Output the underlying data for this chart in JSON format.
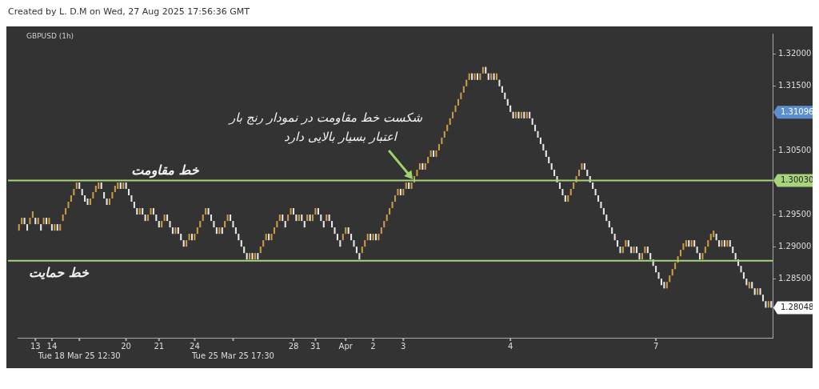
{
  "chart_data": {
    "type": "candlestick",
    "title": "Created by L. D.M on Wed, 27 Aug 2025 17:56:36 GMT",
    "subtitle": "GBPUSD (1h)",
    "categories": [
      null,
      null,
      null,
      null,
      null,
      null,
      "13",
      null,
      null,
      null,
      null,
      null,
      "14",
      null,
      null,
      null,
      null,
      null,
      null,
      null,
      null,
      null,
      "Tue 18 Mar 25 12:30",
      null,
      null,
      null,
      null,
      null,
      null,
      null,
      null,
      null,
      null,
      null,
      null,
      null,
      null,
      null,
      null,
      "20",
      null,
      null,
      null,
      null,
      null,
      null,
      null,
      null,
      null,
      null,
      null,
      "21",
      null,
      null,
      null,
      null,
      null,
      null,
      null,
      null,
      null,
      null,
      null,
      null,
      "24",
      null,
      null,
      null,
      null,
      null,
      null,
      null,
      null,
      null,
      null,
      null,
      null,
      null,
      "Tue 25 Mar 25 17:30",
      null,
      null,
      null,
      null,
      null,
      null,
      null,
      null,
      null,
      null,
      null,
      null,
      null,
      null,
      null,
      null,
      null,
      null,
      null,
      null,
      null,
      "28",
      null,
      null,
      null,
      null,
      null,
      null,
      null,
      "31",
      null,
      null,
      null,
      null,
      null,
      null,
      null,
      null,
      null,
      null,
      "Apr",
      null,
      null,
      null,
      null,
      null,
      null,
      null,
      null,
      null,
      "2",
      null,
      null,
      null,
      null,
      null,
      null,
      null,
      null,
      null,
      null,
      "3",
      null,
      null,
      null,
      null,
      null,
      null,
      null,
      null,
      null,
      null,
      null,
      null,
      null,
      null,
      null,
      null,
      null,
      null,
      null,
      null,
      null,
      null,
      null,
      null,
      null,
      null,
      null,
      null,
      null,
      null,
      null,
      null,
      null,
      null,
      null,
      null,
      null,
      null,
      "4",
      null,
      null,
      null,
      null,
      null,
      null,
      null,
      null,
      null,
      null,
      null,
      null,
      null,
      null,
      null,
      null,
      null,
      null,
      null,
      null,
      null,
      null,
      null,
      null,
      null,
      null,
      null,
      null,
      null,
      null,
      null,
      null,
      null,
      null,
      null,
      null,
      null,
      null,
      null,
      null,
      null,
      null,
      null,
      null,
      null,
      null,
      null,
      null,
      null,
      null,
      null,
      null,
      "7",
      null,
      null,
      null,
      null,
      null,
      null,
      null,
      null,
      null,
      null,
      null,
      null,
      null,
      null,
      null,
      null,
      null,
      null,
      null,
      null,
      null,
      null,
      null,
      null,
      null,
      null,
      null,
      null,
      null,
      null,
      null,
      null,
      null,
      null,
      null,
      null,
      null,
      null,
      null,
      null,
      null,
      null
    ],
    "ohlc": [
      [
        1.2925,
        1.2935,
        1.2925,
        1.2935
      ],
      [
        1.2935,
        1.2945,
        1.2935,
        1.2945
      ],
      [
        1.2945,
        1.2945,
        1.2935,
        1.2935
      ],
      [
        1.2935,
        1.2935,
        1.2925,
        1.2925
      ],
      [
        1.2935,
        1.2945,
        1.2935,
        1.2945
      ],
      [
        1.2945,
        1.2955,
        1.2945,
        1.2955
      ],
      [
        1.2945,
        1.2945,
        1.2935,
        1.2935
      ],
      [
        1.2935,
        1.2945,
        1.2935,
        1.2945
      ],
      [
        1.2935,
        1.2935,
        1.2925,
        1.2925
      ],
      [
        1.2935,
        1.2945,
        1.2935,
        1.2945
      ],
      [
        1.2945,
        1.2945,
        1.2935,
        1.2935
      ],
      [
        1.2935,
        1.2945,
        1.2935,
        1.2945
      ],
      [
        1.2935,
        1.2935,
        1.2925,
        1.2925
      ],
      [
        1.2925,
        1.2935,
        1.2925,
        1.2935
      ],
      [
        1.2935,
        1.2935,
        1.2925,
        1.2925
      ],
      [
        1.2925,
        1.2935,
        1.2925,
        1.2935
      ],
      [
        1.294,
        1.295,
        1.294,
        1.295
      ],
      [
        1.295,
        1.296,
        1.295,
        1.296
      ],
      [
        1.296,
        1.297,
        1.296,
        1.297
      ],
      [
        1.297,
        1.298,
        1.297,
        1.298
      ],
      [
        1.298,
        1.299,
        1.298,
        1.299
      ],
      [
        1.299,
        1.3,
        1.299,
        1.3
      ],
      [
        1.3,
        1.3,
        1.299,
        1.299
      ],
      [
        1.299,
        1.299,
        1.298,
        1.298
      ],
      [
        1.298,
        1.298,
        1.297,
        1.297
      ],
      [
        1.2975,
        1.2975,
        1.2965,
        1.2965
      ],
      [
        1.2965,
        1.2975,
        1.2965,
        1.2975
      ],
      [
        1.2975,
        1.2985,
        1.2975,
        1.2985
      ],
      [
        1.2985,
        1.2995,
        1.2985,
        1.2995
      ],
      [
        1.299,
        1.3,
        1.299,
        1.3
      ],
      [
        1.3,
        1.3,
        1.299,
        1.299
      ],
      [
        1.2985,
        1.2985,
        1.2975,
        1.2975
      ],
      [
        1.2975,
        1.2975,
        1.2965,
        1.2965
      ],
      [
        1.2965,
        1.2975,
        1.2965,
        1.2975
      ],
      [
        1.2975,
        1.2985,
        1.2975,
        1.2985
      ],
      [
        1.2985,
        1.2995,
        1.2985,
        1.2995
      ],
      [
        1.299,
        1.3,
        1.299,
        1.3
      ],
      [
        1.3,
        1.3,
        1.299,
        1.299
      ],
      [
        1.299,
        1.3,
        1.299,
        1.3
      ],
      [
        1.3,
        1.3,
        1.299,
        1.299
      ],
      [
        1.299,
        1.299,
        1.298,
        1.298
      ],
      [
        1.298,
        1.298,
        1.297,
        1.297
      ],
      [
        1.297,
        1.297,
        1.296,
        1.296
      ],
      [
        1.296,
        1.296,
        1.295,
        1.295
      ],
      [
        1.295,
        1.296,
        1.295,
        1.296
      ],
      [
        1.296,
        1.296,
        1.295,
        1.295
      ],
      [
        1.295,
        1.295,
        1.294,
        1.294
      ],
      [
        1.294,
        1.295,
        1.294,
        1.295
      ],
      [
        1.295,
        1.296,
        1.295,
        1.296
      ],
      [
        1.296,
        1.296,
        1.295,
        1.295
      ],
      [
        1.295,
        1.295,
        1.294,
        1.294
      ],
      [
        1.294,
        1.294,
        1.293,
        1.293
      ],
      [
        1.293,
        1.294,
        1.293,
        1.294
      ],
      [
        1.294,
        1.295,
        1.294,
        1.295
      ],
      [
        1.295,
        1.295,
        1.294,
        1.294
      ],
      [
        1.294,
        1.294,
        1.293,
        1.293
      ],
      [
        1.293,
        1.293,
        1.292,
        1.292
      ],
      [
        1.292,
        1.293,
        1.292,
        1.293
      ],
      [
        1.293,
        1.293,
        1.292,
        1.292
      ],
      [
        1.292,
        1.292,
        1.291,
        1.291
      ],
      [
        1.291,
        1.291,
        1.29,
        1.29
      ],
      [
        1.29,
        1.291,
        1.29,
        1.291
      ],
      [
        1.291,
        1.292,
        1.291,
        1.292
      ],
      [
        1.292,
        1.292,
        1.291,
        1.291
      ],
      [
        1.291,
        1.292,
        1.291,
        1.292
      ],
      [
        1.292,
        1.293,
        1.292,
        1.293
      ],
      [
        1.293,
        1.294,
        1.293,
        1.294
      ],
      [
        1.294,
        1.295,
        1.294,
        1.295
      ],
      [
        1.295,
        1.296,
        1.295,
        1.296
      ],
      [
        1.296,
        1.296,
        1.295,
        1.295
      ],
      [
        1.295,
        1.295,
        1.294,
        1.294
      ],
      [
        1.294,
        1.294,
        1.293,
        1.293
      ],
      [
        1.293,
        1.293,
        1.292,
        1.292
      ],
      [
        1.292,
        1.293,
        1.292,
        1.293
      ],
      [
        1.293,
        1.293,
        1.292,
        1.292
      ],
      [
        1.293,
        1.294,
        1.293,
        1.294
      ],
      [
        1.294,
        1.295,
        1.294,
        1.295
      ],
      [
        1.295,
        1.295,
        1.294,
        1.294
      ],
      [
        1.294,
        1.294,
        1.293,
        1.293
      ],
      [
        1.293,
        1.293,
        1.292,
        1.292
      ],
      [
        1.292,
        1.292,
        1.291,
        1.291
      ],
      [
        1.291,
        1.291,
        1.29,
        1.29
      ],
      [
        1.29,
        1.29,
        1.289,
        1.289
      ],
      [
        1.289,
        1.289,
        1.288,
        1.288
      ],
      [
        1.288,
        1.289,
        1.288,
        1.289
      ],
      [
        1.289,
        1.289,
        1.288,
        1.288
      ],
      [
        1.288,
        1.289,
        1.288,
        1.289
      ],
      [
        1.289,
        1.289,
        1.288,
        1.288
      ],
      [
        1.289,
        1.29,
        1.289,
        1.29
      ],
      [
        1.29,
        1.291,
        1.29,
        1.291
      ],
      [
        1.291,
        1.292,
        1.291,
        1.292
      ],
      [
        1.292,
        1.292,
        1.291,
        1.291
      ],
      [
        1.291,
        1.292,
        1.291,
        1.292
      ],
      [
        1.292,
        1.293,
        1.292,
        1.293
      ],
      [
        1.293,
        1.294,
        1.293,
        1.294
      ],
      [
        1.294,
        1.295,
        1.294,
        1.295
      ],
      [
        1.295,
        1.295,
        1.294,
        1.294
      ],
      [
        1.294,
        1.294,
        1.293,
        1.293
      ],
      [
        1.294,
        1.295,
        1.294,
        1.295
      ],
      [
        1.295,
        1.296,
        1.295,
        1.296
      ],
      [
        1.296,
        1.296,
        1.295,
        1.295
      ],
      [
        1.295,
        1.295,
        1.294,
        1.294
      ],
      [
        1.294,
        1.295,
        1.294,
        1.295
      ],
      [
        1.295,
        1.295,
        1.294,
        1.294
      ],
      [
        1.294,
        1.294,
        1.293,
        1.293
      ],
      [
        1.294,
        1.295,
        1.294,
        1.295
      ],
      [
        1.295,
        1.295,
        1.294,
        1.294
      ],
      [
        1.294,
        1.295,
        1.294,
        1.295
      ],
      [
        1.295,
        1.296,
        1.295,
        1.296
      ],
      [
        1.296,
        1.296,
        1.295,
        1.295
      ],
      [
        1.295,
        1.295,
        1.294,
        1.294
      ],
      [
        1.294,
        1.294,
        1.293,
        1.293
      ],
      [
        1.294,
        1.295,
        1.294,
        1.295
      ],
      [
        1.295,
        1.295,
        1.294,
        1.294
      ],
      [
        1.294,
        1.294,
        1.293,
        1.293
      ],
      [
        1.293,
        1.293,
        1.292,
        1.292
      ],
      [
        1.292,
        1.292,
        1.291,
        1.291
      ],
      [
        1.291,
        1.291,
        1.29,
        1.29
      ],
      [
        1.291,
        1.292,
        1.291,
        1.292
      ],
      [
        1.292,
        1.293,
        1.292,
        1.293
      ],
      [
        1.293,
        1.293,
        1.292,
        1.292
      ],
      [
        1.292,
        1.292,
        1.291,
        1.291
      ],
      [
        1.291,
        1.291,
        1.29,
        1.29
      ],
      [
        1.29,
        1.29,
        1.289,
        1.289
      ],
      [
        1.289,
        1.289,
        1.288,
        1.288
      ],
      [
        1.289,
        1.29,
        1.289,
        1.29
      ],
      [
        1.29,
        1.291,
        1.29,
        1.291
      ],
      [
        1.291,
        1.292,
        1.291,
        1.292
      ],
      [
        1.292,
        1.292,
        1.291,
        1.291
      ],
      [
        1.291,
        1.292,
        1.291,
        1.292
      ],
      [
        1.292,
        1.292,
        1.291,
        1.291
      ],
      [
        1.291,
        1.292,
        1.291,
        1.292
      ],
      [
        1.292,
        1.293,
        1.292,
        1.293
      ],
      [
        1.293,
        1.294,
        1.293,
        1.294
      ],
      [
        1.294,
        1.295,
        1.294,
        1.295
      ],
      [
        1.295,
        1.296,
        1.295,
        1.296
      ],
      [
        1.296,
        1.297,
        1.296,
        1.297
      ],
      [
        1.297,
        1.298,
        1.297,
        1.298
      ],
      [
        1.298,
        1.299,
        1.298,
        1.299
      ],
      [
        1.299,
        1.299,
        1.298,
        1.298
      ],
      [
        1.298,
        1.299,
        1.298,
        1.299
      ],
      [
        1.299,
        1.3,
        1.299,
        1.3
      ],
      [
        1.3,
        1.3,
        1.299,
        1.299
      ],
      [
        1.299,
        1.3,
        1.299,
        1.3
      ],
      [
        1.3,
        1.301,
        1.3,
        1.301
      ],
      [
        1.301,
        1.302,
        1.301,
        1.302
      ],
      [
        1.302,
        1.303,
        1.302,
        1.303
      ],
      [
        1.303,
        1.303,
        1.302,
        1.302
      ],
      [
        1.302,
        1.303,
        1.302,
        1.303
      ],
      [
        1.303,
        1.304,
        1.303,
        1.304
      ],
      [
        1.304,
        1.305,
        1.304,
        1.305
      ],
      [
        1.305,
        1.305,
        1.304,
        1.304
      ],
      [
        1.304,
        1.305,
        1.304,
        1.305
      ],
      [
        1.305,
        1.306,
        1.305,
        1.306
      ],
      [
        1.306,
        1.307,
        1.306,
        1.307
      ],
      [
        1.307,
        1.308,
        1.307,
        1.308
      ],
      [
        1.308,
        1.309,
        1.308,
        1.309
      ],
      [
        1.309,
        1.31,
        1.309,
        1.31
      ],
      [
        1.31,
        1.311,
        1.31,
        1.311
      ],
      [
        1.311,
        1.312,
        1.311,
        1.312
      ],
      [
        1.312,
        1.313,
        1.312,
        1.313
      ],
      [
        1.313,
        1.314,
        1.313,
        1.314
      ],
      [
        1.314,
        1.315,
        1.314,
        1.315
      ],
      [
        1.315,
        1.316,
        1.315,
        1.316
      ],
      [
        1.316,
        1.317,
        1.316,
        1.317
      ],
      [
        1.317,
        1.317,
        1.316,
        1.316
      ],
      [
        1.316,
        1.317,
        1.316,
        1.317
      ],
      [
        1.317,
        1.317,
        1.316,
        1.316
      ],
      [
        1.316,
        1.317,
        1.316,
        1.317
      ],
      [
        1.317,
        1.318,
        1.317,
        1.318
      ],
      [
        1.318,
        1.318,
        1.317,
        1.317
      ],
      [
        1.317,
        1.317,
        1.316,
        1.316
      ],
      [
        1.316,
        1.317,
        1.316,
        1.317
      ],
      [
        1.317,
        1.317,
        1.316,
        1.316
      ],
      [
        1.316,
        1.317,
        1.316,
        1.317
      ],
      [
        1.316,
        1.316,
        1.315,
        1.315
      ],
      [
        1.315,
        1.315,
        1.314,
        1.314
      ],
      [
        1.314,
        1.314,
        1.313,
        1.313
      ],
      [
        1.313,
        1.313,
        1.312,
        1.312
      ],
      [
        1.312,
        1.312,
        1.311,
        1.311
      ],
      [
        1.311,
        1.311,
        1.31,
        1.31
      ],
      [
        1.31,
        1.311,
        1.31,
        1.311
      ],
      [
        1.311,
        1.311,
        1.31,
        1.31
      ],
      [
        1.31,
        1.311,
        1.31,
        1.311
      ],
      [
        1.311,
        1.311,
        1.31,
        1.31
      ],
      [
        1.31,
        1.311,
        1.31,
        1.311
      ],
      [
        1.311,
        1.311,
        1.31,
        1.31
      ],
      [
        1.31,
        1.31,
        1.309,
        1.309
      ],
      [
        1.309,
        1.309,
        1.308,
        1.308
      ],
      [
        1.308,
        1.308,
        1.307,
        1.307
      ],
      [
        1.307,
        1.307,
        1.306,
        1.306
      ],
      [
        1.306,
        1.306,
        1.305,
        1.305
      ],
      [
        1.305,
        1.305,
        1.304,
        1.304
      ],
      [
        1.304,
        1.304,
        1.303,
        1.303
      ],
      [
        1.303,
        1.303,
        1.302,
        1.302
      ],
      [
        1.302,
        1.302,
        1.301,
        1.301
      ],
      [
        1.301,
        1.301,
        1.3,
        1.3
      ],
      [
        1.3,
        1.3,
        1.299,
        1.299
      ],
      [
        1.299,
        1.299,
        1.298,
        1.298
      ],
      [
        1.298,
        1.298,
        1.297,
        1.297
      ],
      [
        1.297,
        1.298,
        1.297,
        1.298
      ],
      [
        1.298,
        1.299,
        1.298,
        1.299
      ],
      [
        1.299,
        1.3,
        1.299,
        1.3
      ],
      [
        1.3,
        1.301,
        1.3,
        1.301
      ],
      [
        1.301,
        1.302,
        1.301,
        1.302
      ],
      [
        1.302,
        1.303,
        1.302,
        1.303
      ],
      [
        1.303,
        1.303,
        1.302,
        1.302
      ],
      [
        1.302,
        1.302,
        1.301,
        1.301
      ],
      [
        1.301,
        1.301,
        1.3,
        1.3
      ],
      [
        1.3,
        1.3,
        1.299,
        1.299
      ],
      [
        1.299,
        1.299,
        1.298,
        1.298
      ],
      [
        1.298,
        1.298,
        1.297,
        1.297
      ],
      [
        1.297,
        1.297,
        1.296,
        1.296
      ],
      [
        1.296,
        1.296,
        1.295,
        1.295
      ],
      [
        1.295,
        1.295,
        1.294,
        1.294
      ],
      [
        1.294,
        1.294,
        1.293,
        1.293
      ],
      [
        1.293,
        1.293,
        1.292,
        1.292
      ],
      [
        1.292,
        1.292,
        1.291,
        1.291
      ],
      [
        1.291,
        1.291,
        1.29,
        1.29
      ],
      [
        1.29,
        1.29,
        1.289,
        1.289
      ],
      [
        1.289,
        1.29,
        1.289,
        1.29
      ],
      [
        1.29,
        1.291,
        1.29,
        1.291
      ],
      [
        1.291,
        1.291,
        1.29,
        1.29
      ],
      [
        1.29,
        1.29,
        1.289,
        1.289
      ],
      [
        1.289,
        1.29,
        1.289,
        1.29
      ],
      [
        1.29,
        1.29,
        1.289,
        1.289
      ],
      [
        1.289,
        1.289,
        1.288,
        1.288
      ],
      [
        1.288,
        1.289,
        1.288,
        1.289
      ],
      [
        1.289,
        1.29,
        1.289,
        1.29
      ],
      [
        1.29,
        1.29,
        1.289,
        1.289
      ],
      [
        1.289,
        1.289,
        1.288,
        1.288
      ],
      [
        1.288,
        1.288,
        1.287,
        1.287
      ],
      [
        1.287,
        1.287,
        1.286,
        1.286
      ],
      [
        1.286,
        1.286,
        1.285,
        1.285
      ],
      [
        1.285,
        1.285,
        1.284,
        1.284
      ],
      [
        1.2845,
        1.2845,
        1.2835,
        1.2835
      ],
      [
        1.2835,
        1.2845,
        1.2835,
        1.2845
      ],
      [
        1.2845,
        1.2855,
        1.2845,
        1.2855
      ],
      [
        1.2855,
        1.2865,
        1.2855,
        1.2865
      ],
      [
        1.2865,
        1.2875,
        1.2865,
        1.2875
      ],
      [
        1.2875,
        1.2885,
        1.2875,
        1.2885
      ],
      [
        1.2885,
        1.2895,
        1.2885,
        1.2895
      ],
      [
        1.2895,
        1.2905,
        1.2895,
        1.2905
      ],
      [
        1.29,
        1.291,
        1.29,
        1.291
      ],
      [
        1.291,
        1.291,
        1.29,
        1.29
      ],
      [
        1.29,
        1.291,
        1.29,
        1.291
      ],
      [
        1.291,
        1.291,
        1.29,
        1.29
      ],
      [
        1.29,
        1.29,
        1.289,
        1.289
      ],
      [
        1.289,
        1.289,
        1.288,
        1.288
      ],
      [
        1.288,
        1.289,
        1.288,
        1.289
      ],
      [
        1.289,
        1.29,
        1.289,
        1.29
      ],
      [
        1.29,
        1.291,
        1.29,
        1.291
      ],
      [
        1.291,
        1.292,
        1.291,
        1.292
      ],
      [
        1.2915,
        1.2925,
        1.2915,
        1.2925
      ],
      [
        1.292,
        1.292,
        1.291,
        1.291
      ],
      [
        1.291,
        1.291,
        1.29,
        1.29
      ],
      [
        1.29,
        1.291,
        1.29,
        1.291
      ],
      [
        1.291,
        1.291,
        1.29,
        1.29
      ],
      [
        1.29,
        1.291,
        1.29,
        1.291
      ],
      [
        1.291,
        1.291,
        1.29,
        1.29
      ],
      [
        1.29,
        1.29,
        1.289,
        1.289
      ],
      [
        1.289,
        1.289,
        1.288,
        1.288
      ],
      [
        1.288,
        1.288,
        1.287,
        1.287
      ],
      [
        1.287,
        1.287,
        1.286,
        1.286
      ],
      [
        1.286,
        1.286,
        1.285,
        1.285
      ],
      [
        1.285,
        1.285,
        1.284,
        1.284
      ],
      [
        1.2835,
        1.2845,
        1.2835,
        1.2845
      ],
      [
        1.2845,
        1.2845,
        1.2835,
        1.2835
      ],
      [
        1.2835,
        1.2835,
        1.2825,
        1.2825
      ],
      [
        1.2825,
        1.2835,
        1.2825,
        1.2835
      ],
      [
        1.2835,
        1.2835,
        1.2825,
        1.2825
      ],
      [
        1.2825,
        1.2825,
        1.2815,
        1.2815
      ],
      [
        1.2815,
        1.2815,
        1.2805,
        1.2805
      ],
      [
        1.2805,
        1.2815,
        1.2805,
        1.2815
      ],
      [
        1.2815,
        1.2815,
        1.2805,
        1.2805
      ]
    ],
    "colors": [
      "#c99a45",
      "#c99a45",
      "#e6e6e6",
      "#e6e6e6",
      "#c99a45",
      "#c99a45",
      "#e6e6e6",
      "#c99a45",
      "#e6e6e6",
      "#c99a45",
      "#e6e6e6",
      "#c99a45",
      "#e6e6e6",
      "#c99a45",
      "#e6e6e6",
      "#c99a45",
      "#c99a45",
      "#c99a45",
      "#c99a45",
      "#c99a45",
      "#c99a45",
      "#c99a45",
      "#e6e6e6",
      "#e6e6e6",
      "#e6e6e6",
      "#e6e6e6",
      "#c99a45",
      "#c99a45",
      "#c99a45",
      "#c99a45",
      "#e6e6e6",
      "#e6e6e6",
      "#e6e6e6",
      "#c99a45",
      "#c99a45",
      "#c99a45",
      "#c99a45",
      "#e6e6e6",
      "#c99a45",
      "#e6e6e6",
      "#e6e6e6",
      "#e6e6e6",
      "#e6e6e6",
      "#e6e6e6",
      "#c99a45",
      "#e6e6e6",
      "#e6e6e6",
      "#c99a45",
      "#c99a45",
      "#e6e6e6",
      "#e6e6e6",
      "#e6e6e6",
      "#c99a45",
      "#c99a45",
      "#e6e6e6",
      "#e6e6e6",
      "#e6e6e6",
      "#c99a45",
      "#e6e6e6",
      "#e6e6e6",
      "#e6e6e6",
      "#c99a45",
      "#c99a45",
      "#e6e6e6",
      "#c99a45",
      "#c99a45",
      "#c99a45",
      "#c99a45",
      "#c99a45",
      "#e6e6e6",
      "#e6e6e6",
      "#e6e6e6",
      "#e6e6e6",
      "#c99a45",
      "#e6e6e6",
      "#c99a45",
      "#c99a45",
      "#e6e6e6",
      "#e6e6e6",
      "#e6e6e6",
      "#e6e6e6",
      "#e6e6e6",
      "#e6e6e6",
      "#e6e6e6",
      "#c99a45",
      "#e6e6e6",
      "#c99a45",
      "#e6e6e6",
      "#c99a45",
      "#c99a45",
      "#c99a45",
      "#e6e6e6",
      "#c99a45",
      "#c99a45",
      "#c99a45",
      "#c99a45",
      "#e6e6e6",
      "#e6e6e6",
      "#c99a45",
      "#c99a45",
      "#e6e6e6",
      "#e6e6e6",
      "#c99a45",
      "#e6e6e6",
      "#e6e6e6",
      "#c99a45",
      "#e6e6e6",
      "#c99a45",
      "#c99a45",
      "#e6e6e6",
      "#e6e6e6",
      "#e6e6e6",
      "#c99a45",
      "#e6e6e6",
      "#e6e6e6",
      "#e6e6e6",
      "#e6e6e6",
      "#e6e6e6",
      "#c99a45",
      "#c99a45",
      "#e6e6e6",
      "#e6e6e6",
      "#e6e6e6",
      "#e6e6e6",
      "#e6e6e6",
      "#c99a45",
      "#c99a45",
      "#c99a45",
      "#e6e6e6",
      "#c99a45",
      "#e6e6e6",
      "#c99a45",
      "#c99a45",
      "#c99a45",
      "#c99a45",
      "#c99a45",
      "#c99a45",
      "#c99a45",
      "#c99a45",
      "#e6e6e6",
      "#c99a45",
      "#c99a45",
      "#e6e6e6",
      "#c99a45",
      "#c99a45",
      "#c99a45",
      "#c99a45",
      "#e6e6e6",
      "#c99a45",
      "#c99a45",
      "#c99a45",
      "#e6e6e6",
      "#c99a45",
      "#c99a45",
      "#c99a45",
      "#c99a45",
      "#c99a45",
      "#c99a45",
      "#c99a45",
      "#c99a45",
      "#c99a45",
      "#c99a45",
      "#c99a45",
      "#c99a45",
      "#c99a45",
      "#e6e6e6",
      "#c99a45",
      "#e6e6e6",
      "#c99a45",
      "#c99a45",
      "#e6e6e6",
      "#e6e6e6",
      "#c99a45",
      "#e6e6e6",
      "#c99a45",
      "#e6e6e6",
      "#e6e6e6",
      "#e6e6e6",
      "#e6e6e6",
      "#e6e6e6",
      "#e6e6e6",
      "#c99a45",
      "#e6e6e6",
      "#c99a45",
      "#e6e6e6",
      "#c99a45",
      "#e6e6e6",
      "#e6e6e6",
      "#e6e6e6",
      "#e6e6e6",
      "#e6e6e6",
      "#e6e6e6",
      "#e6e6e6",
      "#e6e6e6",
      "#e6e6e6",
      "#e6e6e6",
      "#e6e6e6",
      "#e6e6e6",
      "#e6e6e6",
      "#e6e6e6",
      "#c99a45",
      "#c99a45",
      "#c99a45",
      "#c99a45",
      "#c99a45",
      "#c99a45",
      "#e6e6e6",
      "#e6e6e6",
      "#e6e6e6",
      "#e6e6e6",
      "#e6e6e6",
      "#e6e6e6",
      "#e6e6e6",
      "#e6e6e6",
      "#e6e6e6",
      "#e6e6e6",
      "#e6e6e6",
      "#e6e6e6",
      "#e6e6e6",
      "#e6e6e6",
      "#c99a45",
      "#c99a45",
      "#e6e6e6",
      "#e6e6e6",
      "#c99a45",
      "#e6e6e6",
      "#e6e6e6",
      "#c99a45",
      "#c99a45",
      "#e6e6e6",
      "#e6e6e6",
      "#e6e6e6",
      "#e6e6e6",
      "#e6e6e6",
      "#e6e6e6",
      "#e6e6e6",
      "#c99a45",
      "#c99a45",
      "#c99a45",
      "#c99a45",
      "#c99a45",
      "#c99a45",
      "#c99a45",
      "#c99a45",
      "#e6e6e6",
      "#c99a45",
      "#e6e6e6",
      "#e6e6e6",
      "#e6e6e6",
      "#c99a45",
      "#c99a45",
      "#c99a45",
      "#c99a45",
      "#c99a45",
      "#e6e6e6",
      "#e6e6e6",
      "#c99a45",
      "#e6e6e6",
      "#c99a45",
      "#e6e6e6",
      "#e6e6e6",
      "#e6e6e6",
      "#e6e6e6",
      "#e6e6e6",
      "#e6e6e6",
      "#e6e6e6",
      "#c99a45",
      "#e6e6e6",
      "#e6e6e6",
      "#c99a45",
      "#e6e6e6",
      "#e6e6e6",
      "#e6e6e6",
      "#c99a45",
      "#e6e6e6"
    ],
    "ylim": [
      1.2758,
      1.3232
    ],
    "yticks": [
      {
        "value": 1.285,
        "label": "1.28500"
      },
      {
        "value": 1.29,
        "label": "1.29000"
      },
      {
        "value": 1.295,
        "label": "1.29500"
      },
      {
        "value": 1.305,
        "label": "1.30500"
      },
      {
        "value": 1.315,
        "label": "1.31500"
      },
      {
        "value": 1.32,
        "label": "1.32000"
      }
    ],
    "ref_lines": [
      {
        "axis": "y",
        "value": 1.3003,
        "label": "خط مقاومت",
        "color": "#a8d47c"
      },
      {
        "axis": "y",
        "value": 1.2878,
        "label": "خط حمایت",
        "color": "#a8d47c"
      }
    ],
    "annotations": [
      "شکست خط مقاومت در نمودار رنج بار\nاعتبار بسیار بالایی دارد",
      "1.30030",
      "1.31096",
      "1.28048"
    ]
  }
}
